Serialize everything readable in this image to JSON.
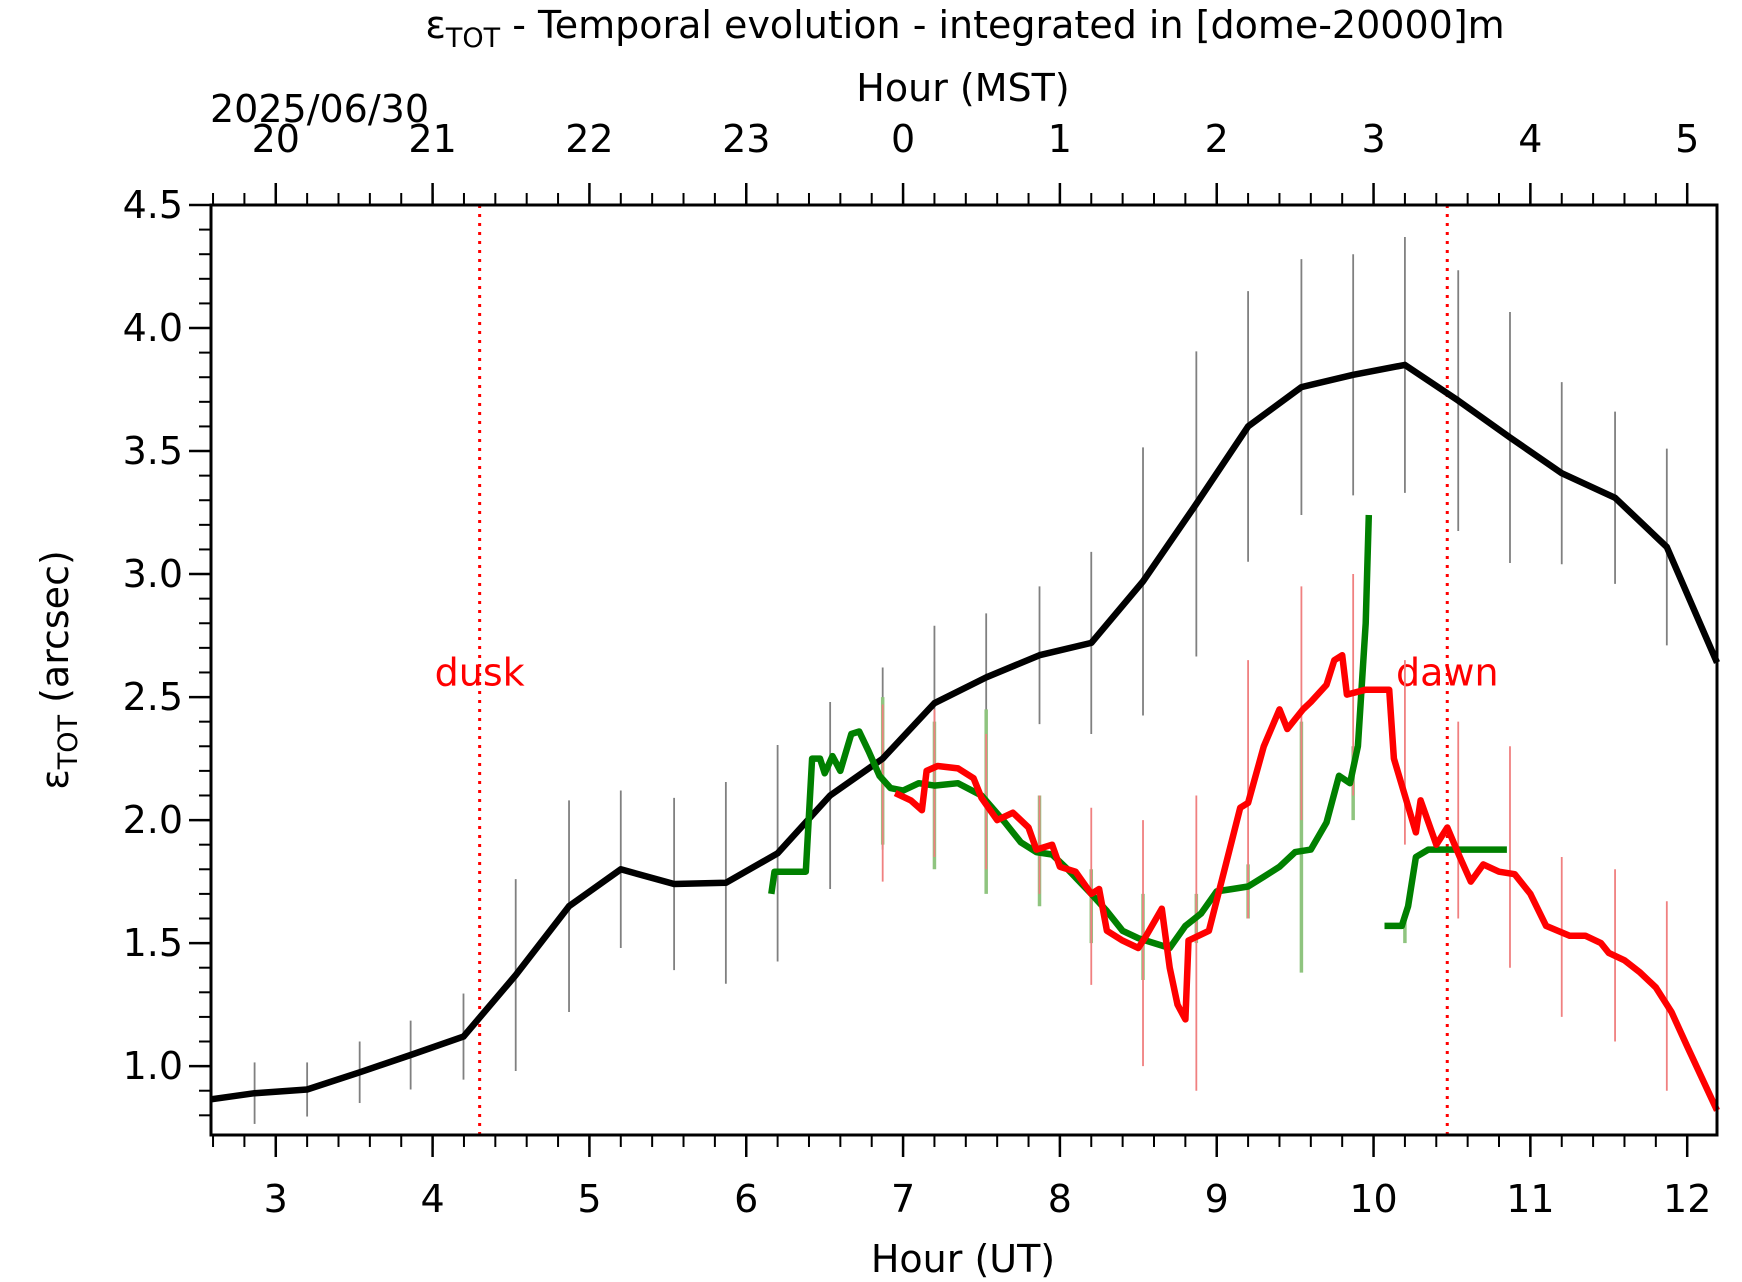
{
  "chart_data": {
    "type": "line",
    "title": {
      "symbol": "ε",
      "sub": "TOT",
      "rest": " - Temporal evolution - integrated in [dome-20000]m"
    },
    "ylabel": {
      "symbol": "ε",
      "sub": "TOT",
      "rest": " (arcsec)"
    },
    "xlabel": "Hour (UT)",
    "x2label": "Hour (MST)",
    "date_label": "2025/06/30",
    "xlim": [
      2.587,
      12.19
    ],
    "xticks": [
      3,
      4,
      5,
      6,
      7,
      8,
      9,
      10,
      11,
      12
    ],
    "x2ticks": [
      {
        "value": 3,
        "label": "20"
      },
      {
        "value": 4,
        "label": "21"
      },
      {
        "value": 5,
        "label": "22"
      },
      {
        "value": 6,
        "label": "23"
      },
      {
        "value": 7,
        "label": "0"
      },
      {
        "value": 8,
        "label": "1"
      },
      {
        "value": 9,
        "label": "2"
      },
      {
        "value": 10,
        "label": "3"
      },
      {
        "value": 11,
        "label": "4"
      },
      {
        "value": 12,
        "label": "5"
      }
    ],
    "x_minor_step": 0.2,
    "ylim": [
      0.72,
      4.5
    ],
    "yticks": [
      {
        "value": 1,
        "label": "1.0"
      },
      1.5,
      {
        "value": 2,
        "label": "2.0"
      },
      2.5,
      {
        "value": 3,
        "label": "3.0"
      },
      3.5,
      {
        "value": 4,
        "label": "4.0"
      },
      4.5
    ],
    "y_minor_step": 0.1,
    "annotations": [
      {
        "text": "dusk",
        "x": 4.3,
        "y": 2.6,
        "color": "#ff0000"
      },
      {
        "text": "dawn",
        "x": 10.47,
        "y": 2.6,
        "color": "#ff0000"
      }
    ],
    "series": [
      {
        "color": "#000000",
        "errcolor": "#808080",
        "x": [
          2.587,
          2.865,
          3.2,
          3.535,
          3.86,
          4.197,
          4.53,
          4.87,
          5.2,
          5.54,
          5.87,
          6.2,
          6.535,
          6.87,
          7.2,
          7.53,
          7.87,
          8.2,
          8.53,
          8.87,
          9.2,
          9.54,
          9.87,
          10.2,
          10.54,
          10.87,
          11.2,
          11.54,
          11.87,
          12.19
        ],
        "values": [
          0.865,
          0.89,
          0.905,
          0.975,
          1.045,
          1.12,
          1.37,
          1.65,
          1.8,
          1.74,
          1.745,
          1.865,
          2.1,
          2.25,
          2.475,
          2.58,
          2.67,
          2.72,
          2.97,
          3.285,
          3.6,
          3.76,
          3.81,
          3.85,
          3.705,
          3.555,
          3.41,
          3.31,
          3.11,
          2.64
        ],
        "errors": [
          null,
          0.125,
          0.11,
          0.125,
          0.14,
          0.175,
          0.39,
          0.43,
          0.32,
          0.35,
          0.41,
          0.44,
          0.38,
          0.37,
          0.315,
          0.26,
          0.28,
          0.37,
          0.545,
          0.62,
          0.55,
          0.52,
          0.49,
          0.52,
          0.53,
          0.51,
          0.37,
          0.35,
          0.4,
          null
        ]
      },
      {
        "color": "#008000",
        "errcolor": "#8fc47f",
        "x": [
          6.16,
          6.18,
          6.38,
          6.42,
          6.47,
          6.5,
          6.55,
          6.6,
          6.67,
          6.72,
          6.78,
          6.85,
          6.92,
          7.0,
          7.1,
          7.2,
          7.35,
          7.5,
          7.65,
          7.75,
          7.85,
          7.95,
          8.05,
          8.2,
          8.3,
          8.4,
          8.5,
          8.6,
          8.7,
          8.8,
          8.9,
          9.0,
          9.1,
          9.2,
          9.3,
          9.4,
          9.5,
          9.6,
          9.7,
          9.78,
          9.85,
          9.9,
          9.95,
          9.97,
          10.02,
          10.07,
          10.18,
          10.22,
          10.27,
          10.35,
          10.85
        ],
        "values": [
          1.7,
          1.79,
          1.79,
          2.25,
          2.25,
          2.19,
          2.26,
          2.2,
          2.35,
          2.36,
          2.28,
          2.18,
          2.13,
          2.12,
          2.15,
          2.14,
          2.15,
          2.1,
          1.99,
          1.91,
          1.87,
          1.86,
          1.8,
          1.7,
          1.63,
          1.55,
          1.52,
          1.5,
          1.48,
          1.57,
          1.62,
          1.71,
          1.72,
          1.73,
          1.77,
          1.81,
          1.87,
          1.88,
          1.99,
          2.18,
          2.15,
          2.3,
          2.8,
          3.24,
          null,
          1.57,
          1.57,
          1.65,
          1.85,
          1.88,
          1.88
        ],
        "errbar_x": [
          6.87,
          7.2,
          7.53,
          7.87,
          8.2,
          8.53,
          8.87,
          9.2,
          9.54,
          9.87,
          10.2
        ],
        "errbar_low": [
          1.9,
          1.8,
          1.7,
          1.65,
          1.5,
          1.35,
          1.5,
          1.6,
          1.38,
          2.0,
          1.5
        ],
        "errbar_high": [
          2.5,
          2.4,
          2.45,
          2.1,
          1.8,
          1.7,
          1.7,
          1.82,
          2.4,
          2.3,
          1.6
        ]
      },
      {
        "color": "#ff0000",
        "errcolor": "#f08080",
        "x": [
          6.95,
          7.05,
          7.12,
          7.15,
          7.22,
          7.35,
          7.45,
          7.5,
          7.6,
          7.7,
          7.8,
          7.85,
          7.95,
          8.0,
          8.1,
          8.2,
          8.25,
          8.3,
          8.4,
          8.5,
          8.55,
          8.65,
          8.7,
          8.75,
          8.8,
          8.82,
          8.95,
          9.05,
          9.15,
          9.2,
          9.3,
          9.4,
          9.45,
          9.55,
          9.6,
          9.7,
          9.75,
          9.8,
          9.83,
          9.95,
          10.1,
          10.13,
          10.2,
          10.27,
          10.3,
          10.4,
          10.47,
          10.55,
          10.62,
          10.7,
          10.8,
          10.9,
          11.0,
          11.1,
          11.25,
          11.35,
          11.45,
          11.5,
          11.6,
          11.7,
          11.8,
          11.9,
          12.0,
          12.19
        ],
        "values": [
          2.11,
          2.08,
          2.04,
          2.2,
          2.22,
          2.21,
          2.17,
          2.09,
          2.0,
          2.03,
          1.97,
          1.88,
          1.9,
          1.81,
          1.79,
          1.7,
          1.72,
          1.55,
          1.51,
          1.48,
          1.53,
          1.64,
          1.4,
          1.25,
          1.19,
          1.51,
          1.55,
          1.8,
          2.05,
          2.07,
          2.3,
          2.45,
          2.37,
          2.45,
          2.48,
          2.55,
          2.65,
          2.67,
          2.51,
          2.53,
          2.53,
          2.25,
          2.1,
          1.95,
          2.08,
          1.9,
          1.97,
          1.85,
          1.75,
          1.82,
          1.79,
          1.78,
          1.7,
          1.57,
          1.53,
          1.53,
          1.5,
          1.46,
          1.43,
          1.38,
          1.32,
          1.22,
          1.08,
          0.82
        ],
        "errbar_x": [
          6.87,
          7.2,
          7.53,
          7.87,
          8.2,
          8.53,
          8.87,
          9.2,
          9.54,
          9.87,
          10.2,
          10.54,
          10.87,
          11.2,
          11.54,
          11.87
        ],
        "errbar_low": [
          1.75,
          1.85,
          1.8,
          1.7,
          1.33,
          1.0,
          0.9,
          1.6,
          2.0,
          2.1,
          1.9,
          1.6,
          1.4,
          1.2,
          1.1,
          0.9
        ],
        "errbar_high": [
          2.47,
          2.45,
          2.35,
          2.1,
          2.05,
          2.0,
          2.1,
          2.65,
          2.95,
          3.0,
          2.65,
          2.4,
          2.3,
          1.85,
          1.8,
          1.67
        ]
      }
    ]
  }
}
